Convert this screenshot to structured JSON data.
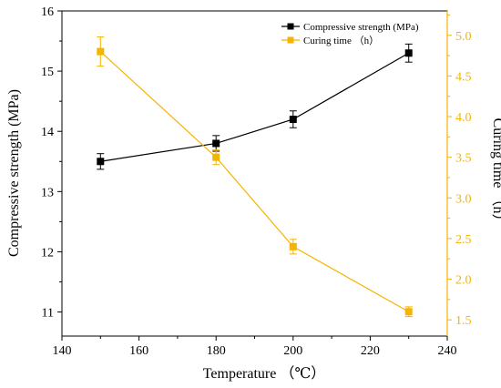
{
  "chart_data": {
    "type": "line",
    "xlabel": "Temperature （℃）",
    "ylabel_left": "Compressive strength (MPa)",
    "ylabel_right": "Curing time （h）",
    "xlim": [
      140,
      240
    ],
    "ylim_left": [
      10.6,
      16
    ],
    "ylim_right": [
      1.3,
      5.3
    ],
    "x_ticks": [
      140,
      160,
      180,
      200,
      220,
      240
    ],
    "x_tick_labels": [
      "140",
      "160",
      "180",
      "200",
      "220",
      "240"
    ],
    "y_left_ticks": [
      11,
      12,
      13,
      14,
      15,
      16
    ],
    "y_left_tick_labels": [
      "11",
      "12",
      "13",
      "14",
      "15",
      "16"
    ],
    "y_right_ticks": [
      1.5,
      2.0,
      2.5,
      3.0,
      3.5,
      4.0,
      4.5,
      5.0
    ],
    "y_right_tick_labels": [
      "1.5",
      "2.0",
      "2.5",
      "3.0",
      "3.5",
      "4.0",
      "4.5",
      "5.0"
    ],
    "grid": false,
    "legend_position": "top-right",
    "series": [
      {
        "name": "Compressive strength (MPa)",
        "axis": "left",
        "color": "#000000",
        "marker": "square",
        "x": [
          150,
          180,
          200,
          230
        ],
        "y": [
          13.5,
          13.8,
          14.2,
          15.3
        ],
        "error": [
          0.13,
          0.13,
          0.14,
          0.15
        ]
      },
      {
        "name": "Curing time （h）",
        "axis": "right",
        "color": "#F5B400",
        "marker": "square",
        "x": [
          150,
          180,
          200,
          230
        ],
        "y": [
          4.8,
          3.5,
          2.4,
          1.6
        ],
        "error": [
          0.18,
          0.09,
          0.09,
          0.06
        ]
      }
    ]
  }
}
